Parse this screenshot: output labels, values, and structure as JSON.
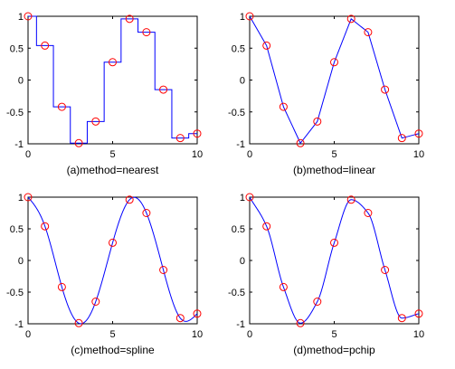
{
  "chart_data": [
    {
      "type": "line",
      "title": "(a)method=nearest",
      "method": "nearest",
      "xlim": [
        0,
        10
      ],
      "ylim": [
        -1,
        1
      ],
      "xticks": [
        "0",
        "5",
        "10"
      ],
      "yticks": [
        "1",
        "0.5",
        "0",
        "-0.5",
        "-1"
      ],
      "sample_x": [
        0,
        1,
        2,
        3,
        4,
        5,
        6,
        7,
        8,
        9,
        10
      ],
      "sample_y": [
        1.0,
        0.54,
        -0.42,
        -0.99,
        -0.65,
        0.28,
        0.96,
        0.75,
        -0.15,
        -0.91,
        -0.84
      ],
      "colors": {
        "curve": "#0000ff",
        "samples": "#ff0000"
      }
    },
    {
      "type": "line",
      "title": "(b)method=linear",
      "method": "linear",
      "xlim": [
        0,
        10
      ],
      "ylim": [
        -1,
        1
      ],
      "xticks": [
        "0",
        "5",
        "10"
      ],
      "yticks": [
        "1",
        "0.5",
        "0",
        "-0.5",
        "-1"
      ],
      "sample_x": [
        0,
        1,
        2,
        3,
        4,
        5,
        6,
        7,
        8,
        9,
        10
      ],
      "sample_y": [
        1.0,
        0.54,
        -0.42,
        -0.99,
        -0.65,
        0.28,
        0.96,
        0.75,
        -0.15,
        -0.91,
        -0.84
      ],
      "colors": {
        "curve": "#0000ff",
        "samples": "#ff0000"
      }
    },
    {
      "type": "line",
      "title": "(c)method=spline",
      "method": "spline",
      "xlim": [
        0,
        10
      ],
      "ylim": [
        -1,
        1
      ],
      "xticks": [
        "0",
        "5",
        "10"
      ],
      "yticks": [
        "1",
        "0.5",
        "0",
        "-0.5",
        "-1"
      ],
      "sample_x": [
        0,
        1,
        2,
        3,
        4,
        5,
        6,
        7,
        8,
        9,
        10
      ],
      "sample_y": [
        1.0,
        0.54,
        -0.42,
        -0.99,
        -0.65,
        0.28,
        0.96,
        0.75,
        -0.15,
        -0.91,
        -0.84
      ],
      "colors": {
        "curve": "#0000ff",
        "samples": "#ff0000"
      }
    },
    {
      "type": "line",
      "title": "(d)method=pchip",
      "method": "pchip",
      "xlim": [
        0,
        10
      ],
      "ylim": [
        -1,
        1
      ],
      "xticks": [
        "0",
        "5",
        "10"
      ],
      "yticks": [
        "1",
        "0.5",
        "0",
        "-0.5",
        "-1"
      ],
      "sample_x": [
        0,
        1,
        2,
        3,
        4,
        5,
        6,
        7,
        8,
        9,
        10
      ],
      "sample_y": [
        1.0,
        0.54,
        -0.42,
        -0.99,
        -0.65,
        0.28,
        0.96,
        0.75,
        -0.15,
        -0.91,
        -0.84
      ],
      "colors": {
        "curve": "#0000ff",
        "samples": "#ff0000"
      }
    }
  ]
}
